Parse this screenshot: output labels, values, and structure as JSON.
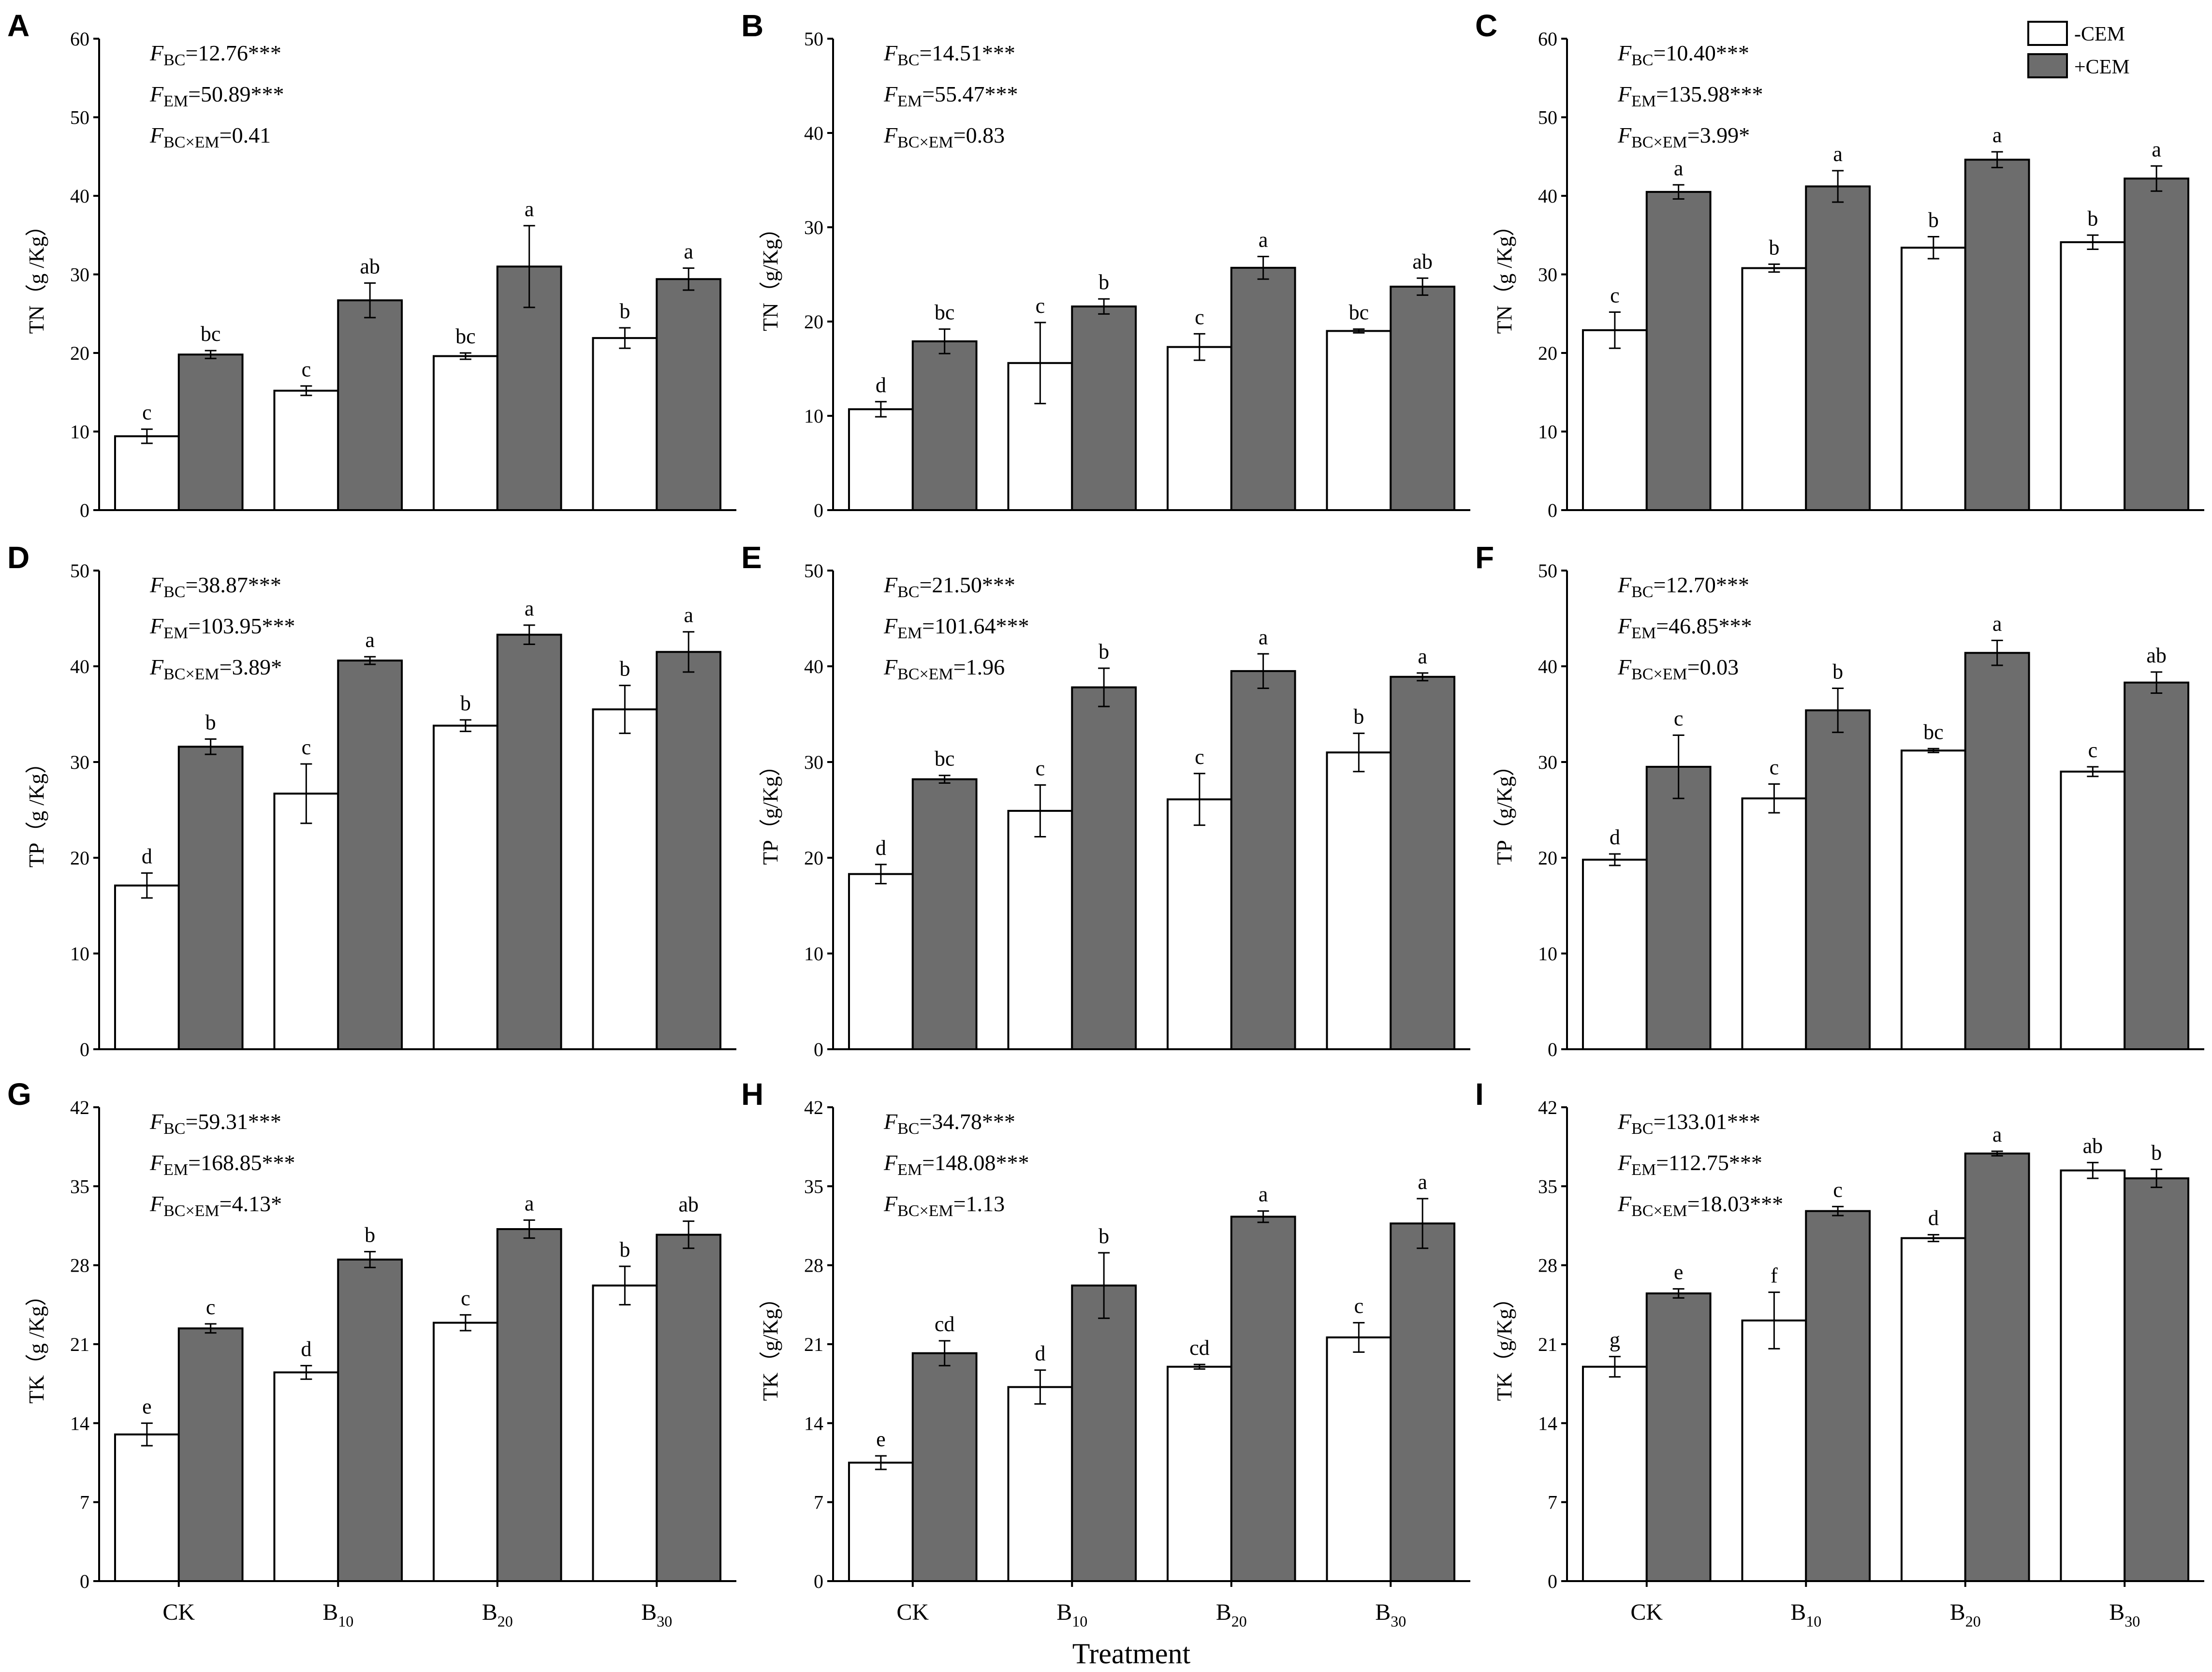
{
  "x_axis_title": "Treatment",
  "legend": [
    {
      "label": "-CEM",
      "color": "#ffffff"
    },
    {
      "label": "+CEM",
      "color": "#6d6d6d"
    }
  ],
  "chart_data": [
    {
      "type": "bar",
      "panel": "A",
      "ylabel": "TN（g /Kg）",
      "ylim": [
        0,
        60
      ],
      "yticks": [
        0,
        10,
        20,
        30,
        40,
        50,
        60
      ],
      "categories": [
        {
          "main": "CK",
          "sub": ""
        },
        {
          "main": "B",
          "sub": "10"
        },
        {
          "main": "B",
          "sub": "20"
        },
        {
          "main": "B",
          "sub": "30"
        }
      ],
      "series": [
        {
          "name": "-CEM",
          "values": [
            9.4,
            15.2,
            19.6,
            21.9
          ],
          "errors": [
            0.9,
            0.6,
            0.4,
            1.3
          ],
          "letters": [
            "c",
            "c",
            "bc",
            "b"
          ]
        },
        {
          "name": "+CEM",
          "values": [
            19.8,
            26.7,
            31.0,
            29.4
          ],
          "errors": [
            0.5,
            2.2,
            5.2,
            1.4
          ],
          "letters": [
            "bc",
            "ab",
            "a",
            "a"
          ]
        }
      ],
      "stats": [
        {
          "sub": "BC",
          "value": "=12.76***"
        },
        {
          "sub": "EM",
          "value": "=50.89***"
        },
        {
          "sub": "BC×EM",
          "value": "=0.41"
        }
      ]
    },
    {
      "type": "bar",
      "panel": "B",
      "ylabel": "TN（g/Kg）",
      "ylim": [
        0,
        50
      ],
      "yticks": [
        0,
        10,
        20,
        30,
        40,
        50
      ],
      "categories": [
        {
          "main": "CK",
          "sub": ""
        },
        {
          "main": "B",
          "sub": "10"
        },
        {
          "main": "B",
          "sub": "20"
        },
        {
          "main": "B",
          "sub": "30"
        }
      ],
      "series": [
        {
          "name": "-CEM",
          "values": [
            10.7,
            15.6,
            17.3,
            19.0
          ],
          "errors": [
            0.8,
            4.3,
            1.4,
            0.2
          ],
          "letters": [
            "d",
            "c",
            "c",
            "bc"
          ]
        },
        {
          "name": "+CEM",
          "values": [
            17.9,
            21.6,
            25.7,
            23.7
          ],
          "errors": [
            1.3,
            0.8,
            1.2,
            0.9
          ],
          "letters": [
            "bc",
            "b",
            "a",
            "ab"
          ]
        }
      ],
      "stats": [
        {
          "sub": "BC",
          "value": "=14.51***"
        },
        {
          "sub": "EM",
          "value": "=55.47***"
        },
        {
          "sub": "BC×EM",
          "value": "=0.83"
        }
      ]
    },
    {
      "type": "bar",
      "panel": "C",
      "ylabel": "TN（g /Kg）",
      "ylim": [
        0,
        60
      ],
      "yticks": [
        0,
        10,
        20,
        30,
        40,
        50,
        60
      ],
      "categories": [
        {
          "main": "CK",
          "sub": ""
        },
        {
          "main": "B",
          "sub": "10"
        },
        {
          "main": "B",
          "sub": "20"
        },
        {
          "main": "B",
          "sub": "30"
        }
      ],
      "series": [
        {
          "name": "-CEM",
          "values": [
            22.9,
            30.8,
            33.4,
            34.1
          ],
          "errors": [
            2.3,
            0.5,
            1.4,
            0.9
          ],
          "letters": [
            "c",
            "b",
            "b",
            "b"
          ]
        },
        {
          "name": "+CEM",
          "values": [
            40.5,
            41.2,
            44.6,
            42.2
          ],
          "errors": [
            0.9,
            2.0,
            1.0,
            1.6
          ],
          "letters": [
            "a",
            "a",
            "a",
            "a"
          ]
        }
      ],
      "stats": [
        {
          "sub": "BC",
          "value": "=10.40***"
        },
        {
          "sub": "EM",
          "value": "=135.98***"
        },
        {
          "sub": "BC×EM",
          "value": "=3.99*"
        }
      ]
    },
    {
      "type": "bar",
      "panel": "D",
      "ylabel": "TP（g /Kg）",
      "ylim": [
        0,
        50
      ],
      "yticks": [
        0,
        10,
        20,
        30,
        40,
        50
      ],
      "categories": [
        {
          "main": "CK",
          "sub": ""
        },
        {
          "main": "B",
          "sub": "10"
        },
        {
          "main": "B",
          "sub": "20"
        },
        {
          "main": "B",
          "sub": "30"
        }
      ],
      "series": [
        {
          "name": "-CEM",
          "values": [
            17.1,
            26.7,
            33.8,
            35.5
          ],
          "errors": [
            1.3,
            3.1,
            0.6,
            2.5
          ],
          "letters": [
            "d",
            "c",
            "b",
            "b"
          ]
        },
        {
          "name": "+CEM",
          "values": [
            31.6,
            40.6,
            43.3,
            41.5
          ],
          "errors": [
            0.8,
            0.4,
            1.0,
            2.1
          ],
          "letters": [
            "b",
            "a",
            "a",
            "a"
          ]
        }
      ],
      "stats": [
        {
          "sub": "BC",
          "value": "=38.87***"
        },
        {
          "sub": "EM",
          "value": "=103.95***"
        },
        {
          "sub": "BC×EM",
          "value": "=3.89*"
        }
      ]
    },
    {
      "type": "bar",
      "panel": "E",
      "ylabel": "TP（g/Kg）",
      "ylim": [
        0,
        50
      ],
      "yticks": [
        0,
        10,
        20,
        30,
        40,
        50
      ],
      "categories": [
        {
          "main": "CK",
          "sub": ""
        },
        {
          "main": "B",
          "sub": "10"
        },
        {
          "main": "B",
          "sub": "20"
        },
        {
          "main": "B",
          "sub": "30"
        }
      ],
      "series": [
        {
          "name": "-CEM",
          "values": [
            18.3,
            24.9,
            26.1,
            31.0
          ],
          "errors": [
            1.0,
            2.7,
            2.7,
            2.0
          ],
          "letters": [
            "d",
            "c",
            "c",
            "b"
          ]
        },
        {
          "name": "+CEM",
          "values": [
            28.2,
            37.8,
            39.5,
            38.9
          ],
          "errors": [
            0.4,
            2.0,
            1.8,
            0.4
          ],
          "letters": [
            "bc",
            "b",
            "a",
            "a"
          ]
        }
      ],
      "stats": [
        {
          "sub": "BC",
          "value": "=21.50***"
        },
        {
          "sub": "EM",
          "value": "=101.64***"
        },
        {
          "sub": "BC×EM",
          "value": "=1.96"
        }
      ]
    },
    {
      "type": "bar",
      "panel": "F",
      "ylabel": "TP（g/Kg）",
      "ylim": [
        0,
        50
      ],
      "yticks": [
        0,
        10,
        20,
        30,
        40,
        50
      ],
      "categories": [
        {
          "main": "CK",
          "sub": ""
        },
        {
          "main": "B",
          "sub": "10"
        },
        {
          "main": "B",
          "sub": "20"
        },
        {
          "main": "B",
          "sub": "30"
        }
      ],
      "series": [
        {
          "name": "-CEM",
          "values": [
            19.8,
            26.2,
            31.2,
            29.0
          ],
          "errors": [
            0.6,
            1.5,
            0.2,
            0.5
          ],
          "letters": [
            "d",
            "c",
            "bc",
            "c"
          ]
        },
        {
          "name": "+CEM",
          "values": [
            29.5,
            35.4,
            41.4,
            38.3
          ],
          "errors": [
            3.3,
            2.3,
            1.3,
            1.1
          ],
          "letters": [
            "c",
            "b",
            "a",
            "ab"
          ]
        }
      ],
      "stats": [
        {
          "sub": "BC",
          "value": "=12.70***"
        },
        {
          "sub": "EM",
          "value": "=46.85***"
        },
        {
          "sub": "BC×EM",
          "value": "=0.03"
        }
      ]
    },
    {
      "type": "bar",
      "panel": "G",
      "ylabel": "TK（g /Kg）",
      "ylim": [
        0,
        42
      ],
      "yticks": [
        0,
        7,
        14,
        21,
        28,
        35,
        42
      ],
      "categories": [
        {
          "main": "CK",
          "sub": ""
        },
        {
          "main": "B",
          "sub": "10"
        },
        {
          "main": "B",
          "sub": "20"
        },
        {
          "main": "B",
          "sub": "30"
        }
      ],
      "series": [
        {
          "name": "-CEM",
          "values": [
            13.0,
            18.5,
            22.9,
            26.2
          ],
          "errors": [
            1.0,
            0.6,
            0.7,
            1.7
          ],
          "letters": [
            "e",
            "d",
            "c",
            "b"
          ]
        },
        {
          "name": "+CEM",
          "values": [
            22.4,
            28.5,
            31.2,
            30.7
          ],
          "errors": [
            0.4,
            0.7,
            0.8,
            1.2
          ],
          "letters": [
            "c",
            "b",
            "a",
            "ab"
          ]
        }
      ],
      "stats": [
        {
          "sub": "BC",
          "value": "=59.31***"
        },
        {
          "sub": "EM",
          "value": "=168.85***"
        },
        {
          "sub": "BC×EM",
          "value": "=4.13*"
        }
      ]
    },
    {
      "type": "bar",
      "panel": "H",
      "ylabel": "TK（g/Kg）",
      "ylim": [
        0,
        42
      ],
      "yticks": [
        0,
        7,
        14,
        21,
        28,
        35,
        42
      ],
      "categories": [
        {
          "main": "CK",
          "sub": ""
        },
        {
          "main": "B",
          "sub": "10"
        },
        {
          "main": "B",
          "sub": "20"
        },
        {
          "main": "B",
          "sub": "30"
        }
      ],
      "series": [
        {
          "name": "-CEM",
          "values": [
            10.5,
            17.2,
            19.0,
            21.6
          ],
          "errors": [
            0.6,
            1.5,
            0.2,
            1.3
          ],
          "letters": [
            "e",
            "d",
            "cd",
            "c"
          ]
        },
        {
          "name": "+CEM",
          "values": [
            20.2,
            26.2,
            32.3,
            31.7
          ],
          "errors": [
            1.1,
            2.9,
            0.5,
            2.2
          ],
          "letters": [
            "cd",
            "b",
            "a",
            "a"
          ]
        }
      ],
      "stats": [
        {
          "sub": "BC",
          "value": "=34.78***"
        },
        {
          "sub": "EM",
          "value": "=148.08***"
        },
        {
          "sub": "BC×EM",
          "value": "=1.13"
        }
      ]
    },
    {
      "type": "bar",
      "panel": "I",
      "ylabel": "TK（g/Kg）",
      "ylim": [
        0,
        42
      ],
      "yticks": [
        0,
        7,
        14,
        21,
        28,
        35,
        42
      ],
      "categories": [
        {
          "main": "CK",
          "sub": ""
        },
        {
          "main": "B",
          "sub": "10"
        },
        {
          "main": "B",
          "sub": "20"
        },
        {
          "main": "B",
          "sub": "30"
        }
      ],
      "series": [
        {
          "name": "-CEM",
          "values": [
            19.0,
            23.1,
            30.4,
            36.4
          ],
          "errors": [
            0.9,
            2.5,
            0.3,
            0.7
          ],
          "letters": [
            "g",
            "f",
            "d",
            "ab"
          ]
        },
        {
          "name": "+CEM",
          "values": [
            25.5,
            32.8,
            37.9,
            35.7
          ],
          "errors": [
            0.4,
            0.4,
            0.2,
            0.8
          ],
          "letters": [
            "e",
            "c",
            "a",
            "b"
          ]
        }
      ],
      "stats": [
        {
          "sub": "BC",
          "value": "=133.01***"
        },
        {
          "sub": "EM",
          "value": "=112.75***"
        },
        {
          "sub": "BC×EM",
          "value": "=18.03***"
        }
      ]
    }
  ]
}
